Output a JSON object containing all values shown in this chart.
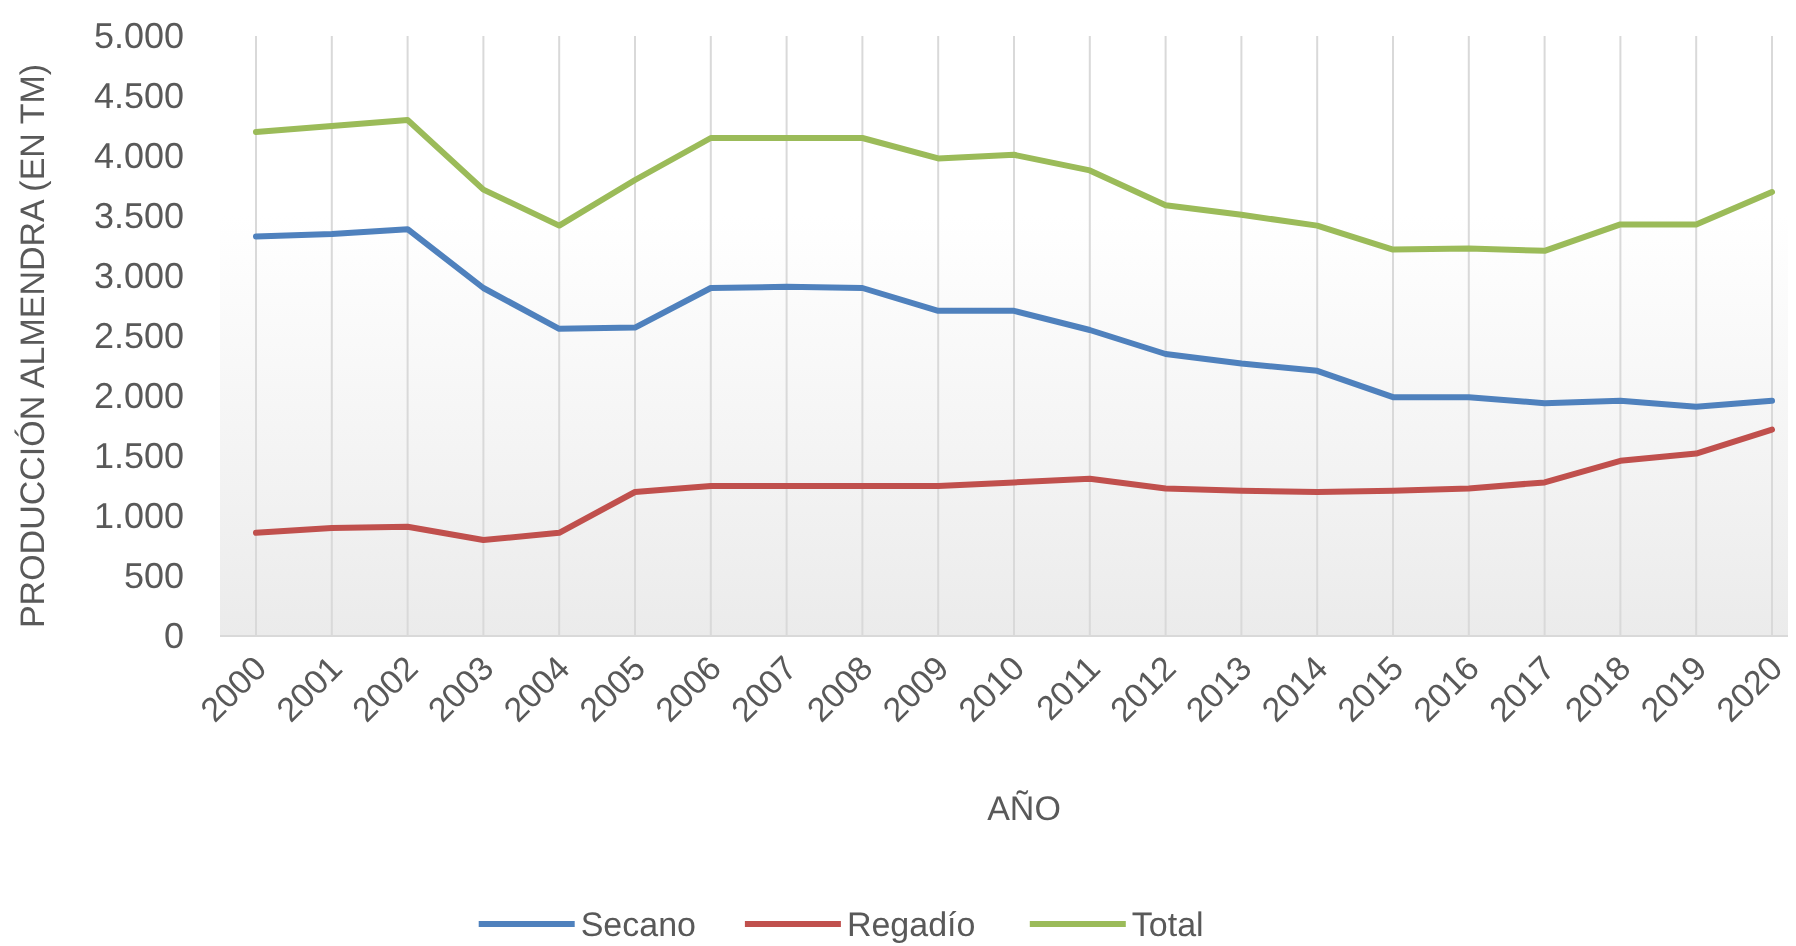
{
  "chart_data": {
    "type": "line",
    "xlabel": "AÑO",
    "ylabel": "PRODUCCIÓN ALMENDRA (EN TM)",
    "categories": [
      "2000",
      "2001",
      "2002",
      "2003",
      "2004",
      "2005",
      "2006",
      "2007",
      "2008",
      "2009",
      "2010",
      "2011",
      "2012",
      "2013",
      "2014",
      "2015",
      "2016",
      "2017",
      "2018",
      "2019",
      "2020"
    ],
    "series": [
      {
        "name": "Secano",
        "color": "#4f81bd",
        "values": [
          3330,
          3350,
          3390,
          2900,
          2560,
          2570,
          2900,
          2910,
          2900,
          2710,
          2710,
          2550,
          2350,
          2270,
          2210,
          1990,
          1990,
          1940,
          1960,
          1910,
          1960
        ]
      },
      {
        "name": "Regadío",
        "color": "#c0504d",
        "values": [
          860,
          900,
          910,
          800,
          860,
          1200,
          1250,
          1250,
          1250,
          1250,
          1280,
          1310,
          1230,
          1210,
          1200,
          1210,
          1230,
          1280,
          1460,
          1520,
          1720
        ]
      },
      {
        "name": "Total",
        "color": "#9bbb59",
        "values": [
          4200,
          4250,
          4300,
          3720,
          3420,
          3800,
          4150,
          4150,
          4150,
          3980,
          4010,
          3880,
          3590,
          3510,
          3420,
          3220,
          3230,
          3210,
          3430,
          3430,
          3700
        ]
      }
    ],
    "ylim": [
      0,
      5000
    ],
    "yticks": [
      0,
      500,
      {
        "value": 1000,
        "label": "1.000"
      },
      {
        "value": 1500,
        "label": "1.500"
      },
      {
        "value": 2000,
        "label": "2.000"
      },
      {
        "value": 2500,
        "label": "2.500"
      },
      {
        "value": 3000,
        "label": "3.000"
      },
      {
        "value": 3500,
        "label": "3.500"
      },
      {
        "value": 4000,
        "label": "4.000"
      },
      {
        "value": 4500,
        "label": "4.500"
      },
      {
        "value": 5000,
        "label": "5.000"
      }
    ],
    "grid": "x",
    "legend": "bottom"
  }
}
